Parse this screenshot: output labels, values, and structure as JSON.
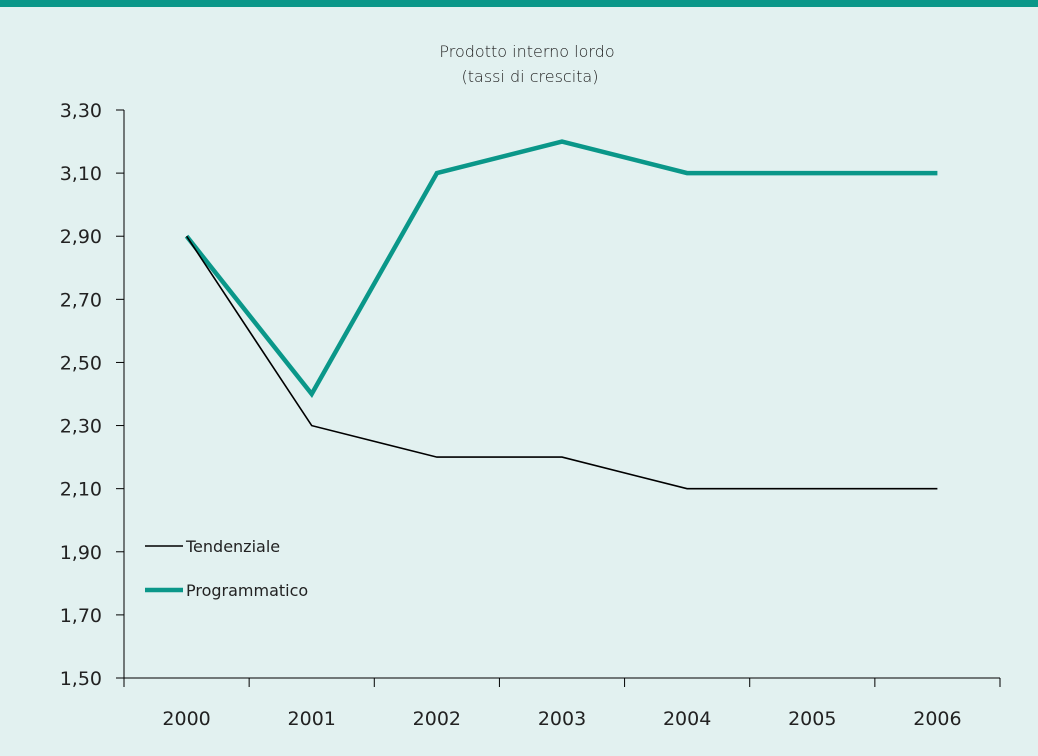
{
  "chart_data": {
    "type": "line",
    "title_line1": "Prodotto interno lordo",
    "title_line2": "(tassi di crescita)",
    "categories": [
      "2000",
      "2001",
      "2002",
      "2003",
      "2004",
      "2005",
      "2006"
    ],
    "y_ticks": [
      "1,50",
      "1,70",
      "1,90",
      "2,10",
      "2,30",
      "2,50",
      "2,70",
      "2,90",
      "3,10",
      "3,30"
    ],
    "ylim": [
      1.5,
      3.3
    ],
    "grid": false,
    "legend_position": "bottom-left",
    "series": [
      {
        "name": "Tendenziale",
        "values": [
          2.9,
          2.3,
          2.2,
          2.2,
          2.1,
          2.1,
          2.1
        ],
        "color": "#000000"
      },
      {
        "name": "Programmatico",
        "values": [
          2.9,
          2.4,
          3.1,
          3.2,
          3.1,
          3.1,
          3.1
        ],
        "color": "#0a9789"
      }
    ]
  },
  "colors": {
    "accent": "#0a9789",
    "background": "#e2f1f0"
  }
}
